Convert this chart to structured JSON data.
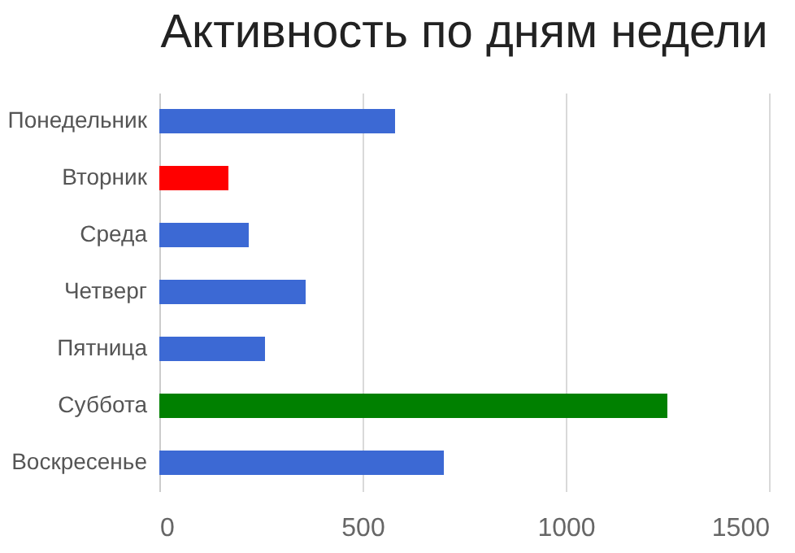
{
  "chart_data": {
    "type": "bar",
    "orientation": "horizontal",
    "title": "Активность по дням недели",
    "categories": [
      "Понедельник",
      "Вторник",
      "Среда",
      "Четверг",
      "Пятница",
      "Суббота",
      "Воскресенье"
    ],
    "values": [
      580,
      170,
      220,
      360,
      260,
      1250,
      700
    ],
    "colors": [
      "#3c69d4",
      "#ff0000",
      "#3c69d4",
      "#3c69d4",
      "#3c69d4",
      "#008000",
      "#3c69d4"
    ],
    "xlim": [
      0,
      1500
    ],
    "xticks": [
      0,
      500,
      1000,
      1500
    ],
    "grid": "x"
  }
}
